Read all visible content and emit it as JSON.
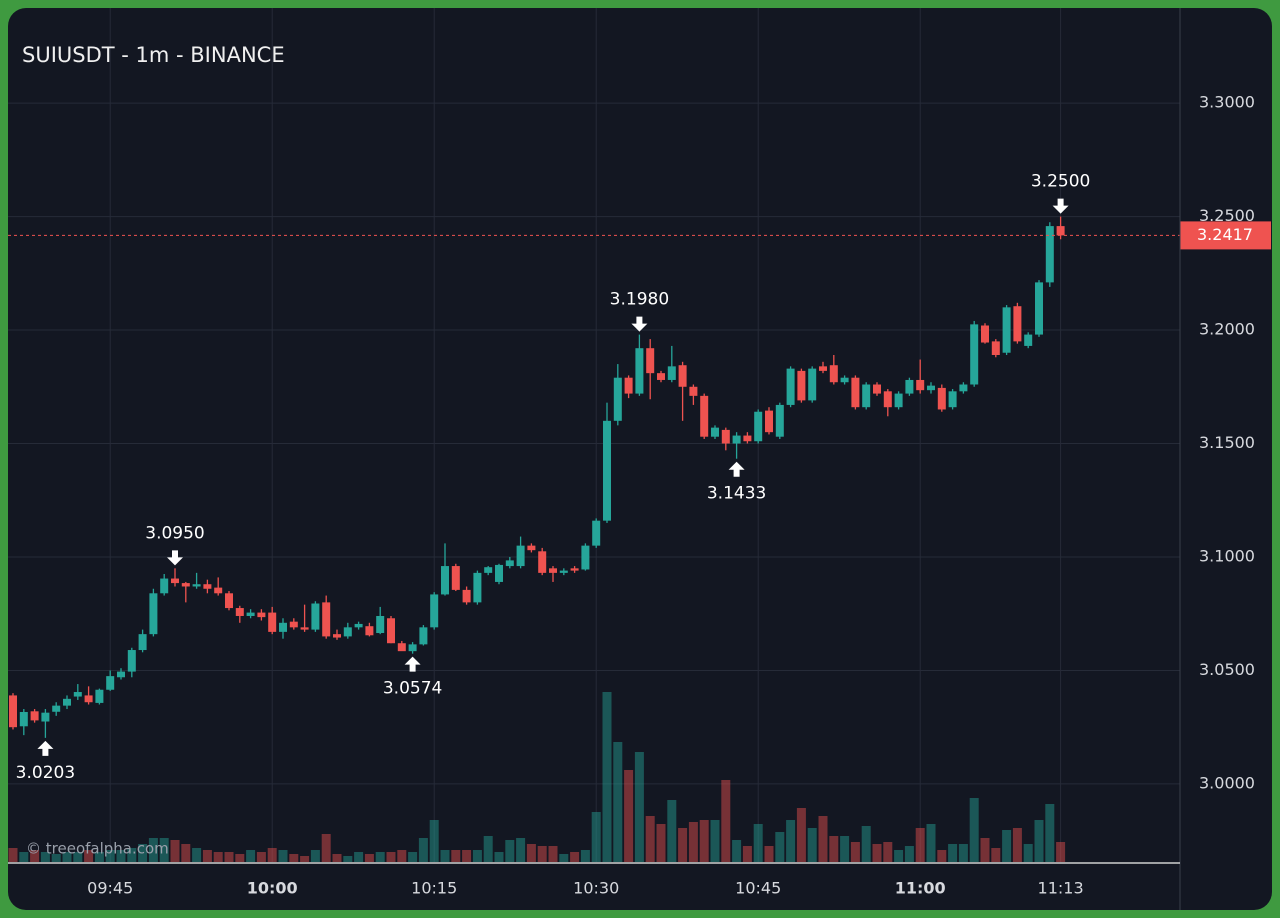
{
  "chart_data": {
    "type": "candlestick",
    "title": "SUIUSDT - 1m - BINANCE",
    "watermark": "© treeofalpha.com",
    "x": [
      "09:36",
      "09:37",
      "09:38",
      "09:39",
      "09:40",
      "09:41",
      "09:42",
      "09:43",
      "09:44",
      "09:45",
      "09:46",
      "09:47",
      "09:48",
      "09:49",
      "09:50",
      "09:51",
      "09:52",
      "09:53",
      "09:54",
      "09:55",
      "09:56",
      "09:57",
      "09:58",
      "09:59",
      "10:00",
      "10:01",
      "10:02",
      "10:03",
      "10:04",
      "10:05",
      "10:06",
      "10:07",
      "10:08",
      "10:09",
      "10:10",
      "10:11",
      "10:12",
      "10:13",
      "10:14",
      "10:15",
      "10:16",
      "10:17",
      "10:18",
      "10:19",
      "10:20",
      "10:21",
      "10:22",
      "10:23",
      "10:24",
      "10:25",
      "10:26",
      "10:27",
      "10:28",
      "10:29",
      "10:30",
      "10:31",
      "10:32",
      "10:33",
      "10:34",
      "10:35",
      "10:36",
      "10:37",
      "10:38",
      "10:39",
      "10:40",
      "10:41",
      "10:42",
      "10:43",
      "10:44",
      "10:45",
      "10:46",
      "10:47",
      "10:48",
      "10:49",
      "10:50",
      "10:51",
      "10:52",
      "10:53",
      "10:54",
      "10:55",
      "10:56",
      "10:57",
      "10:58",
      "10:59",
      "11:00",
      "11:01",
      "11:02",
      "11:03",
      "11:04",
      "11:05",
      "11:06",
      "11:07",
      "11:08",
      "11:09",
      "11:10",
      "11:11",
      "11:12",
      "11:13"
    ],
    "open": [
      3.039,
      3.0254,
      3.032,
      3.0275,
      3.0318,
      3.0345,
      3.0385,
      3.039,
      3.0357,
      3.0415,
      3.047,
      3.0495,
      3.059,
      3.066,
      3.084,
      3.0905,
      3.0885,
      3.087,
      3.088,
      3.0865,
      3.084,
      3.0775,
      3.074,
      3.0755,
      3.0755,
      3.067,
      3.0715,
      3.069,
      3.068,
      3.08,
      3.066,
      3.065,
      3.069,
      3.0695,
      3.0665,
      3.073,
      3.062,
      3.0585,
      3.0615,
      3.069,
      3.0835,
      3.096,
      3.0855,
      3.08,
      3.093,
      3.089,
      3.096,
      3.096,
      3.105,
      3.1025,
      3.095,
      3.093,
      3.095,
      3.0945,
      3.105,
      3.116,
      3.16,
      3.179,
      3.172,
      3.192,
      3.181,
      3.178,
      3.1845,
      3.175,
      3.171,
      3.153,
      3.156,
      3.15,
      3.1535,
      3.151,
      3.1645,
      3.153,
      3.167,
      3.182,
      3.169,
      3.184,
      3.1845,
      3.177,
      3.179,
      3.166,
      3.176,
      3.173,
      3.166,
      3.172,
      3.178,
      3.1735,
      3.1745,
      3.166,
      3.173,
      3.176,
      3.202,
      3.195,
      3.19,
      3.2105,
      3.193,
      3.198,
      3.221,
      3.2458
    ],
    "high": [
      3.04,
      3.033,
      3.033,
      3.033,
      3.036,
      3.039,
      3.044,
      3.043,
      3.042,
      3.05,
      3.051,
      3.06,
      3.068,
      3.086,
      3.0925,
      3.095,
      3.089,
      3.093,
      3.09,
      3.091,
      3.085,
      3.0785,
      3.077,
      3.077,
      3.078,
      3.073,
      3.073,
      3.079,
      3.0805,
      3.083,
      3.068,
      3.071,
      3.0715,
      3.071,
      3.078,
      3.074,
      3.063,
      3.0625,
      3.07,
      3.0845,
      3.106,
      3.097,
      3.087,
      3.094,
      3.096,
      3.097,
      3.1,
      3.109,
      3.106,
      3.104,
      3.096,
      3.095,
      3.096,
      3.106,
      3.117,
      3.168,
      3.185,
      3.18,
      3.198,
      3.196,
      3.182,
      3.193,
      3.186,
      3.176,
      3.172,
      3.158,
      3.157,
      3.155,
      3.155,
      3.165,
      3.166,
      3.168,
      3.184,
      3.183,
      3.184,
      3.186,
      3.189,
      3.18,
      3.18,
      3.177,
      3.177,
      3.174,
      3.173,
      3.179,
      3.187,
      3.177,
      3.176,
      3.174,
      3.177,
      3.204,
      3.203,
      3.196,
      3.211,
      3.212,
      3.199,
      3.222,
      3.2475,
      3.25
    ],
    "low": [
      3.024,
      3.0215,
      3.027,
      3.0203,
      3.03,
      3.033,
      3.037,
      3.035,
      3.035,
      3.041,
      3.046,
      3.047,
      3.058,
      3.065,
      3.083,
      3.087,
      3.08,
      3.086,
      3.084,
      3.083,
      3.0765,
      3.071,
      3.073,
      3.072,
      3.066,
      3.064,
      3.068,
      3.067,
      3.067,
      3.064,
      3.0635,
      3.064,
      3.068,
      3.065,
      3.066,
      3.062,
      3.059,
      3.0574,
      3.061,
      3.068,
      3.083,
      3.085,
      3.079,
      3.079,
      3.092,
      3.088,
      3.095,
      3.095,
      3.102,
      3.092,
      3.089,
      3.092,
      3.093,
      3.094,
      3.104,
      3.115,
      3.158,
      3.17,
      3.171,
      3.1695,
      3.177,
      3.177,
      3.16,
      3.167,
      3.152,
      3.152,
      3.147,
      3.1433,
      3.15,
      3.15,
      3.154,
      3.152,
      3.166,
      3.168,
      3.168,
      3.181,
      3.176,
      3.176,
      3.165,
      3.165,
      3.171,
      3.162,
      3.165,
      3.171,
      3.172,
      3.172,
      3.164,
      3.165,
      3.172,
      3.175,
      3.194,
      3.188,
      3.189,
      3.194,
      3.192,
      3.197,
      3.219,
      3.24
    ],
    "close": [
      3.025,
      3.0317,
      3.028,
      3.0314,
      3.0345,
      3.0375,
      3.0405,
      3.036,
      3.0415,
      3.0475,
      3.0495,
      3.059,
      3.066,
      3.084,
      3.0905,
      3.0885,
      3.087,
      3.088,
      3.086,
      3.084,
      3.0775,
      3.074,
      3.0755,
      3.0735,
      3.067,
      3.071,
      3.069,
      3.068,
      3.0795,
      3.065,
      3.0645,
      3.069,
      3.0705,
      3.0655,
      3.074,
      3.062,
      3.0585,
      3.0615,
      3.069,
      3.0835,
      3.096,
      3.0855,
      3.08,
      3.093,
      3.0955,
      3.0965,
      3.0985,
      3.105,
      3.103,
      3.093,
      3.093,
      3.094,
      3.094,
      3.105,
      3.116,
      3.16,
      3.179,
      3.172,
      3.192,
      3.181,
      3.178,
      3.184,
      3.175,
      3.171,
      3.153,
      3.157,
      3.15,
      3.1535,
      3.151,
      3.164,
      3.155,
      3.167,
      3.183,
      3.169,
      3.183,
      3.182,
      3.177,
      3.179,
      3.166,
      3.176,
      3.172,
      3.166,
      3.172,
      3.178,
      3.1735,
      3.1755,
      3.165,
      3.173,
      3.176,
      3.2025,
      3.1945,
      3.189,
      3.21,
      3.195,
      3.198,
      3.221,
      3.2458,
      3.2417
    ],
    "volume": [
      14,
      10,
      12,
      10,
      8,
      10,
      10,
      12,
      10,
      12,
      12,
      14,
      18,
      24,
      24,
      22,
      18,
      14,
      12,
      10,
      10,
      8,
      12,
      10,
      14,
      12,
      8,
      6,
      12,
      28,
      8,
      6,
      10,
      8,
      10,
      10,
      12,
      10,
      24,
      42,
      12,
      12,
      12,
      12,
      26,
      10,
      22,
      24,
      18,
      16,
      16,
      8,
      10,
      12,
      50,
      170,
      120,
      92,
      110,
      46,
      38,
      62,
      34,
      40,
      42,
      42,
      82,
      22,
      16,
      38,
      16,
      30,
      42,
      54,
      34,
      46,
      26,
      26,
      20,
      36,
      18,
      20,
      12,
      16,
      34,
      38,
      12,
      18,
      18,
      64,
      24,
      14,
      32,
      34,
      18,
      42,
      58,
      20
    ],
    "up_color": "#26a69a",
    "down_color": "#ef5350",
    "ylim": [
      2.9656,
      3.3419
    ],
    "yticks": [
      {
        "value": 3.0,
        "label": "3.0000"
      },
      {
        "value": 3.05,
        "label": "3.0500"
      },
      {
        "value": 3.1,
        "label": "3.1000"
      },
      {
        "value": 3.15,
        "label": "3.1500"
      },
      {
        "value": 3.2,
        "label": "3.2000"
      },
      {
        "value": 3.25,
        "label": "3.2500"
      },
      {
        "value": 3.3,
        "label": "3.3000"
      }
    ],
    "xticks": [
      "09:45",
      "10:00",
      "10:15",
      "10:30",
      "10:45",
      "11:00",
      "11:13"
    ],
    "vlim": [
      0,
      200
    ],
    "grid": true,
    "annotations": {
      "highs": [
        {
          "value": 3.095,
          "label": "3.0950"
        },
        {
          "value": 3.198,
          "label": "3.1980"
        },
        {
          "value": 3.25,
          "label": "3.2500"
        }
      ],
      "lows": [
        {
          "value": 3.0203,
          "label": "3.0203"
        },
        {
          "value": 3.0574,
          "label": "3.0574"
        },
        {
          "value": 3.1433,
          "label": "3.1433"
        }
      ]
    },
    "last_price": {
      "value": 3.2417,
      "label": "3.2417"
    }
  }
}
